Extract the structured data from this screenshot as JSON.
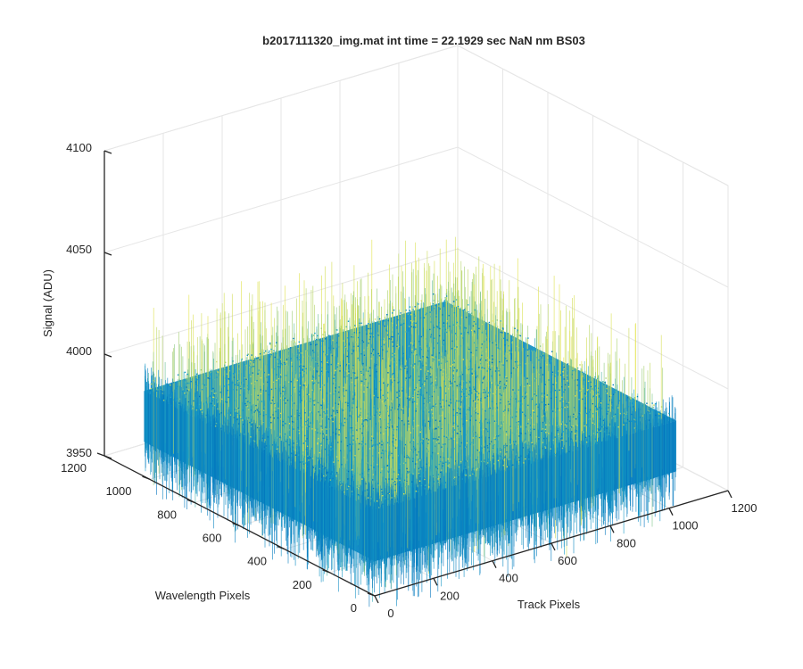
{
  "chart_data": {
    "type": "surface",
    "title": "b2017111320_img.mat int time = 22.1929 sec  NaN nm BS03",
    "xlabel": "Track Pixels",
    "ylabel": "Wavelength Pixels",
    "zlabel": "Signal (ADU)",
    "xlim": [
      0,
      1200
    ],
    "ylim": [
      0,
      1200
    ],
    "zlim": [
      3950,
      4100
    ],
    "x_ticks": [
      0,
      200,
      400,
      600,
      800,
      1000,
      1200
    ],
    "y_ticks": [
      0,
      200,
      400,
      600,
      800,
      1000,
      1200
    ],
    "z_ticks": [
      3950,
      4000,
      4050,
      4100
    ],
    "data_extent": {
      "x": [
        0,
        1024
      ],
      "y": [
        0,
        1024
      ]
    },
    "signal_mean": 3980,
    "signal_noise_range": [
      3960,
      4030
    ],
    "grid": true,
    "colormap": "parula",
    "colors": {
      "low": "#0072bd",
      "mid": "#1aa4c8",
      "high": "#e3e34a"
    }
  }
}
